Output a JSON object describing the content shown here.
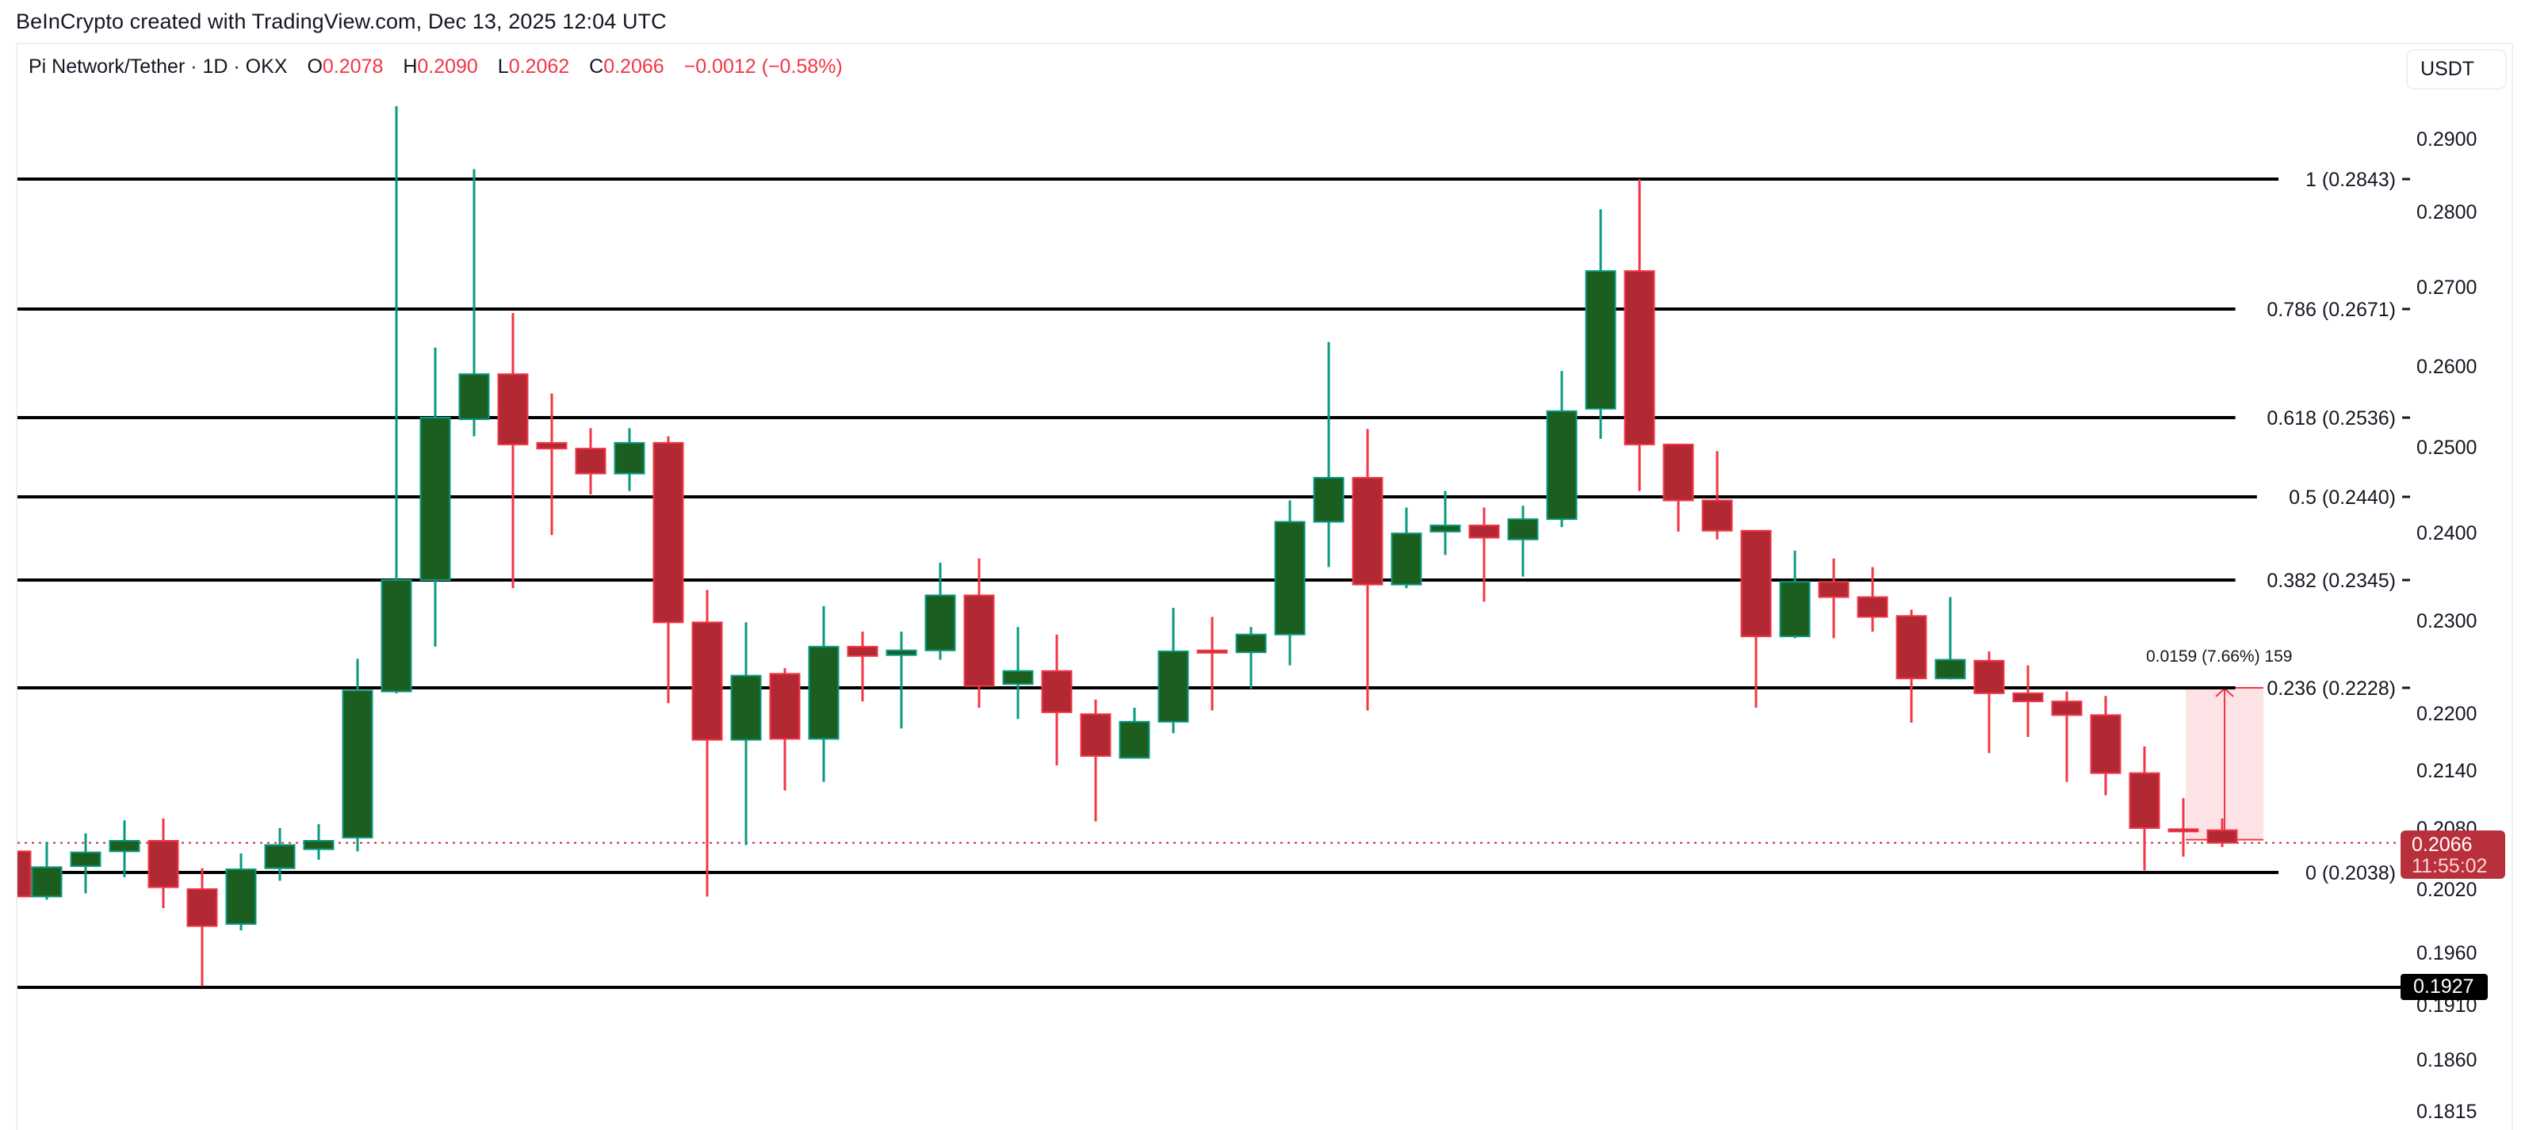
{
  "header": {
    "credit": "BeInCrypto created with TradingView.com, Dec 13, 2025 12:04 UTC"
  },
  "legend": {
    "symbol": "Pi Network/Tether · 1D · OKX",
    "open_label": "O",
    "open": "0.2078",
    "high_label": "H",
    "high": "0.2090",
    "low_label": "L",
    "low": "0.2062",
    "close_label": "C",
    "close": "0.2066",
    "change": "−0.0012 (−0.58%)"
  },
  "unit_button": "USDT",
  "price_tag": {
    "price": "0.2066",
    "countdown": "11:55:02"
  },
  "support_tag": "0.1927",
  "measure": {
    "label": "0.0159 (7.66%) 159"
  },
  "colors": {
    "up_body": "#1b5e20",
    "up_border": "#089981",
    "down_body": "#b22833",
    "down_border": "#f23645",
    "fib_line": "#000000",
    "measure_fill": "#fde3e6",
    "measure_line": "#f23645",
    "last_price": "#b8303b"
  },
  "chart_data": {
    "type": "candlestick",
    "title": "Pi Network/Tether · 1D · OKX",
    "xlabel": "",
    "ylabel": "USDT",
    "scale": "log",
    "ylim": [
      0.18,
      0.295
    ],
    "grid": false,
    "y_ticks": [
      "0.2900",
      "0.2800",
      "0.2700",
      "0.2600",
      "0.2500",
      "0.2400",
      "0.2300",
      "0.2200",
      "0.2140",
      "0.2080",
      "0.2020",
      "0.1960",
      "0.1910",
      "0.1860",
      "0.1815"
    ],
    "fib_levels": [
      {
        "ratio": "1",
        "price": 0.2843,
        "label": "1 (0.2843)"
      },
      {
        "ratio": "0.786",
        "price": 0.2671,
        "label": "0.786 (0.2671)"
      },
      {
        "ratio": "0.618",
        "price": 0.2536,
        "label": "0.618 (0.2536)"
      },
      {
        "ratio": "0.5",
        "price": 0.244,
        "label": "0.5 (0.2440)"
      },
      {
        "ratio": "0.382",
        "price": 0.2345,
        "label": "0.382 (0.2345)"
      },
      {
        "ratio": "0.236",
        "price": 0.2228,
        "label": "0.236 (0.2228)"
      },
      {
        "ratio": "0",
        "price": 0.2038,
        "label": "0 (0.2038)"
      }
    ],
    "horizontal_lines": [
      {
        "price": 0.1927,
        "label": "0.1927"
      }
    ],
    "last_price": 0.2066,
    "measure": {
      "from": 0.2069,
      "to": 0.2228,
      "change": "0.0159",
      "percent": "7.66%",
      "bars": 159
    },
    "candles": [
      {
        "o": 0.2058,
        "h": 0.2064,
        "l": 0.201,
        "c": 0.2013
      },
      {
        "o": 0.2013,
        "h": 0.2067,
        "l": 0.201,
        "c": 0.2043
      },
      {
        "o": 0.2044,
        "h": 0.2075,
        "l": 0.2016,
        "c": 0.2057
      },
      {
        "o": 0.2058,
        "h": 0.2088,
        "l": 0.2033,
        "c": 0.2068
      },
      {
        "o": 0.2068,
        "h": 0.209,
        "l": 0.2002,
        "c": 0.2022
      },
      {
        "o": 0.202,
        "h": 0.2042,
        "l": 0.1928,
        "c": 0.1985
      },
      {
        "o": 0.1987,
        "h": 0.2056,
        "l": 0.1981,
        "c": 0.2041
      },
      {
        "o": 0.2042,
        "h": 0.208,
        "l": 0.2029,
        "c": 0.2064
      },
      {
        "o": 0.206,
        "h": 0.2084,
        "l": 0.205,
        "c": 0.2068
      },
      {
        "o": 0.2071,
        "h": 0.2259,
        "l": 0.2058,
        "c": 0.2225
      },
      {
        "o": 0.2224,
        "h": 0.2946,
        "l": 0.2222,
        "c": 0.2345
      },
      {
        "o": 0.2345,
        "h": 0.2623,
        "l": 0.2272,
        "c": 0.2536
      },
      {
        "o": 0.2534,
        "h": 0.2857,
        "l": 0.2513,
        "c": 0.259
      },
      {
        "o": 0.259,
        "h": 0.2666,
        "l": 0.2336,
        "c": 0.2503
      },
      {
        "o": 0.2505,
        "h": 0.2566,
        "l": 0.2397,
        "c": 0.2498
      },
      {
        "o": 0.2498,
        "h": 0.2523,
        "l": 0.2443,
        "c": 0.2468
      },
      {
        "o": 0.2468,
        "h": 0.2523,
        "l": 0.2447,
        "c": 0.2505
      },
      {
        "o": 0.2505,
        "h": 0.2513,
        "l": 0.2211,
        "c": 0.2298
      },
      {
        "o": 0.2298,
        "h": 0.2334,
        "l": 0.2013,
        "c": 0.2172
      },
      {
        "o": 0.2172,
        "h": 0.2298,
        "l": 0.2064,
        "c": 0.2241
      },
      {
        "o": 0.2243,
        "h": 0.2249,
        "l": 0.2119,
        "c": 0.2173
      },
      {
        "o": 0.2173,
        "h": 0.2316,
        "l": 0.2128,
        "c": 0.2272
      },
      {
        "o": 0.2272,
        "h": 0.2288,
        "l": 0.2213,
        "c": 0.2262
      },
      {
        "o": 0.2263,
        "h": 0.2288,
        "l": 0.2184,
        "c": 0.2268
      },
      {
        "o": 0.2268,
        "h": 0.2365,
        "l": 0.2258,
        "c": 0.2328
      },
      {
        "o": 0.2328,
        "h": 0.237,
        "l": 0.2206,
        "c": 0.223
      },
      {
        "o": 0.2232,
        "h": 0.2293,
        "l": 0.2194,
        "c": 0.2246
      },
      {
        "o": 0.2246,
        "h": 0.2285,
        "l": 0.2145,
        "c": 0.2201
      },
      {
        "o": 0.2199,
        "h": 0.2215,
        "l": 0.2087,
        "c": 0.2155
      },
      {
        "o": 0.2153,
        "h": 0.2206,
        "l": 0.2153,
        "c": 0.2191
      },
      {
        "o": 0.2191,
        "h": 0.2314,
        "l": 0.2179,
        "c": 0.2267
      },
      {
        "o": 0.2268,
        "h": 0.2304,
        "l": 0.2203,
        "c": 0.2266
      },
      {
        "o": 0.2266,
        "h": 0.2293,
        "l": 0.2227,
        "c": 0.2285
      },
      {
        "o": 0.2285,
        "h": 0.2436,
        "l": 0.2252,
        "c": 0.2412
      },
      {
        "o": 0.2412,
        "h": 0.263,
        "l": 0.236,
        "c": 0.2463
      },
      {
        "o": 0.2463,
        "h": 0.2522,
        "l": 0.2203,
        "c": 0.234
      },
      {
        "o": 0.234,
        "h": 0.2428,
        "l": 0.2336,
        "c": 0.2399
      },
      {
        "o": 0.2401,
        "h": 0.2447,
        "l": 0.2374,
        "c": 0.2408
      },
      {
        "o": 0.2408,
        "h": 0.2428,
        "l": 0.2321,
        "c": 0.2394
      },
      {
        "o": 0.2392,
        "h": 0.243,
        "l": 0.2349,
        "c": 0.2415
      },
      {
        "o": 0.2415,
        "h": 0.2594,
        "l": 0.2406,
        "c": 0.2544
      },
      {
        "o": 0.2547,
        "h": 0.2803,
        "l": 0.251,
        "c": 0.2721
      },
      {
        "o": 0.2721,
        "h": 0.2843,
        "l": 0.2447,
        "c": 0.2503
      },
      {
        "o": 0.2503,
        "h": 0.2503,
        "l": 0.2401,
        "c": 0.2436
      },
      {
        "o": 0.2436,
        "h": 0.2495,
        "l": 0.2392,
        "c": 0.2402
      },
      {
        "o": 0.2402,
        "h": 0.2402,
        "l": 0.2206,
        "c": 0.2283
      },
      {
        "o": 0.2283,
        "h": 0.2379,
        "l": 0.2281,
        "c": 0.2343
      },
      {
        "o": 0.2343,
        "h": 0.237,
        "l": 0.2281,
        "c": 0.2326
      },
      {
        "o": 0.2326,
        "h": 0.236,
        "l": 0.2288,
        "c": 0.2304
      },
      {
        "o": 0.2305,
        "h": 0.2312,
        "l": 0.219,
        "c": 0.2238
      },
      {
        "o": 0.2238,
        "h": 0.2326,
        "l": 0.2237,
        "c": 0.2258
      },
      {
        "o": 0.2257,
        "h": 0.2267,
        "l": 0.2158,
        "c": 0.2222
      },
      {
        "o": 0.2222,
        "h": 0.2252,
        "l": 0.2175,
        "c": 0.2213
      },
      {
        "o": 0.2213,
        "h": 0.2224,
        "l": 0.2128,
        "c": 0.2198
      },
      {
        "o": 0.2198,
        "h": 0.2219,
        "l": 0.2114,
        "c": 0.2137
      },
      {
        "o": 0.2137,
        "h": 0.2165,
        "l": 0.204,
        "c": 0.208
      },
      {
        "o": 0.2079,
        "h": 0.2111,
        "l": 0.2053,
        "c": 0.2077
      },
      {
        "o": 0.2078,
        "h": 0.209,
        "l": 0.2062,
        "c": 0.2066
      }
    ]
  }
}
